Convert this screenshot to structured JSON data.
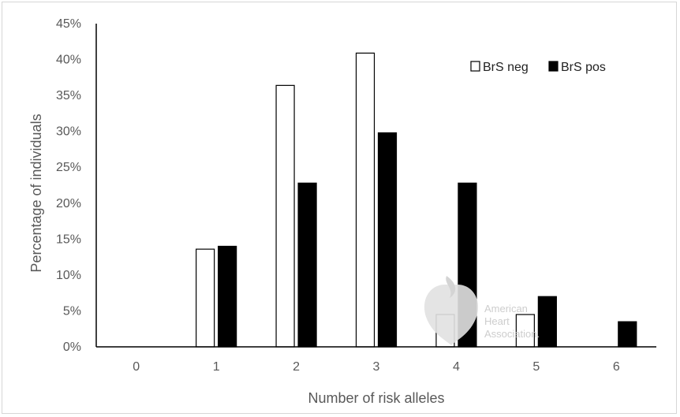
{
  "chart_data": {
    "type": "bar",
    "title": "",
    "xlabel": "Number of risk alleles",
    "ylabel": "Percentage of individuals",
    "categories": [
      "0",
      "1",
      "2",
      "3",
      "4",
      "5",
      "6"
    ],
    "series": [
      {
        "name": "BrS neg",
        "values": [
          0,
          13.6,
          36.4,
          40.9,
          4.5,
          4.5,
          0
        ],
        "fill": "#ffffff",
        "stroke": "#000000"
      },
      {
        "name": "BrS pos",
        "values": [
          0,
          14.0,
          22.8,
          29.8,
          22.8,
          7.0,
          3.5
        ],
        "fill": "#000000",
        "stroke": "#000000"
      }
    ],
    "ylim": [
      0,
      45
    ],
    "yticks": [
      "0%",
      "5%",
      "10%",
      "15%",
      "20%",
      "25%",
      "30%",
      "35%",
      "40%",
      "45%"
    ],
    "grid": false,
    "legend_position": "top-right"
  },
  "watermark": {
    "lines": [
      "American",
      "Heart",
      "Association."
    ]
  }
}
